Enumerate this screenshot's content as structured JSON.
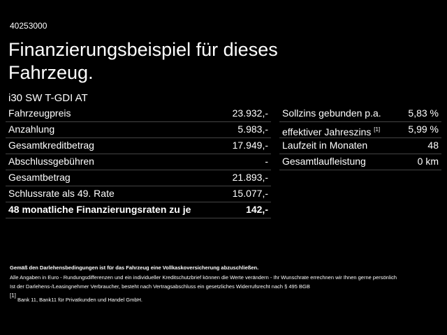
{
  "header": {
    "id": "40253000",
    "title_lines": [
      "Finanzierungsbeispiel für dieses",
      "Fahrzeug."
    ],
    "model": "i30 SW T-GDI AT"
  },
  "left_table": {
    "rows": [
      [
        "Fahrzeugpreis",
        "23.932,-"
      ],
      [
        "Anzahlung",
        "5.983,-"
      ],
      [
        "Gesamtkreditbetrag",
        "17.949,-"
      ],
      [
        "Abschlussgebühren",
        "-"
      ],
      [
        "Gesamtbetrag",
        "21.893,-"
      ],
      [
        "Schlussrate als 49. Rate",
        "15.077,-"
      ],
      [
        "48 monatliche Finanzierungsraten zu je",
        "142,-"
      ]
    ]
  },
  "right_table": {
    "rows": [
      [
        "Sollzins gebunden p.a.",
        "5,83 %"
      ],
      [
        "effektiver Jahreszins",
        "5,99 %"
      ],
      [
        "Laufzeit in Monaten",
        "48"
      ],
      [
        "Gesamtlaufleistung",
        "0 km"
      ]
    ],
    "footnote_ref": "[1]"
  },
  "footer": {
    "bold_note": "Gemäß den Darlehensbedingungen ist für das Fahrzeug eine Vollkaskoversicherung abzuschließen.",
    "lines": [
      "Alle Angaben in Euro - Rundungsdifferenzen und ein individueller Kreditschutzbrief können die Werte verändern - Ihr Wunschrate errechnen wir Ihnen gerne persönlich",
      "Ist der Darlehens-/Leasingnehmer Verbraucher, besteht nach Vertragsabschluss ein gesetzliches Widerrufsrecht nach § 495 BGB"
    ],
    "footnote_mark": "[1]",
    "footnote_text": "Bank 11, Bank11 für Privatkunden und Handel GmbH."
  }
}
